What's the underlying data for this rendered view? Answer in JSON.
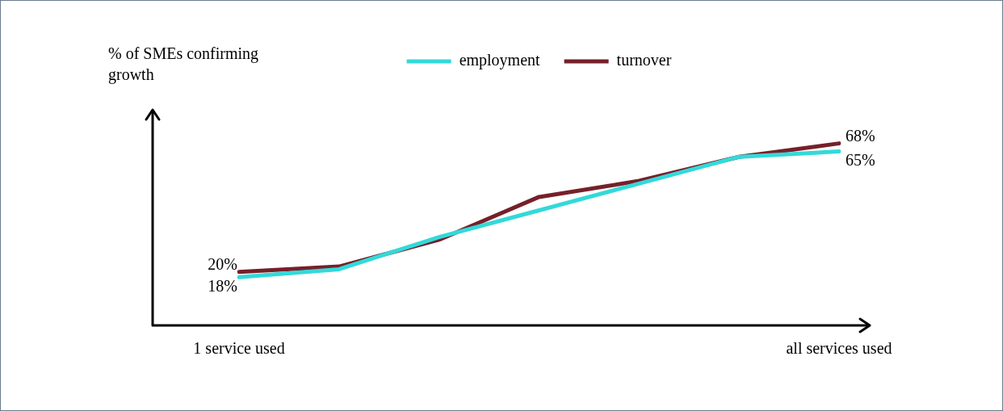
{
  "chart_data": {
    "type": "line",
    "ylabel": "% of SMEs confirming growth",
    "categories": [
      "1 service used",
      null,
      null,
      null,
      null,
      null,
      "all services used"
    ],
    "series": [
      {
        "name": "employment",
        "color": "#33d9d9",
        "values": [
          18,
          21,
          33,
          43,
          53,
          63,
          65
        ],
        "value_labels": [
          "18%",
          null,
          null,
          null,
          null,
          null,
          "65%"
        ]
      },
      {
        "name": "turnover",
        "color": "#76202a",
        "values": [
          20,
          22,
          32,
          48,
          54,
          63,
          68
        ],
        "value_labels": [
          "20%",
          null,
          null,
          null,
          null,
          null,
          "68%"
        ]
      }
    ],
    "grid": false,
    "legend": "top",
    "tick_labels": "x",
    "marker": "none",
    "line_style": "solid"
  }
}
